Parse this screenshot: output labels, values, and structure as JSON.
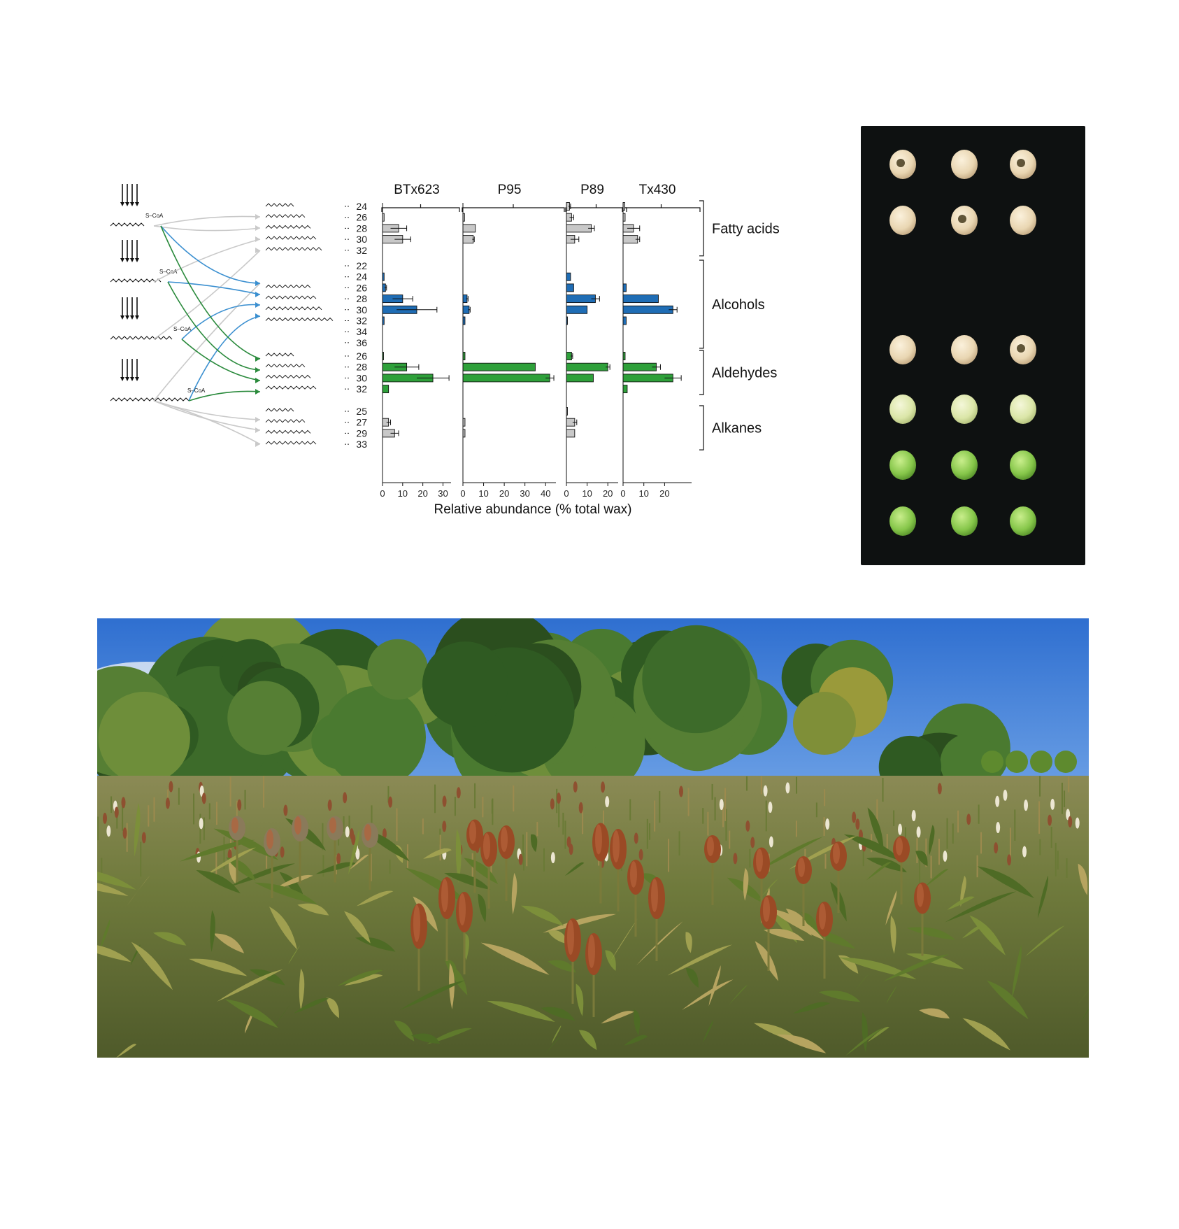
{
  "chart_data": {
    "type": "bar",
    "orientation": "horizontal",
    "xlabel": "Relative abundance (% total wax)",
    "panels": [
      {
        "label": "BTx623",
        "xticks": [
          0,
          10,
          20,
          30
        ],
        "xlim": [
          0,
          34
        ]
      },
      {
        "label": "P95",
        "xticks": [
          0,
          10,
          20,
          30,
          40
        ],
        "xlim": [
          0,
          45
        ]
      },
      {
        "label": "P89",
        "xticks": [
          0,
          10,
          20
        ],
        "xlim": [
          0,
          25
        ]
      },
      {
        "label": "Tx430",
        "xticks": [
          0,
          10,
          20
        ],
        "xlim": [
          0,
          33
        ]
      }
    ],
    "groups": [
      {
        "name": "Fatty acids",
        "color": "#c8c8c8",
        "categories": [
          "24",
          "26",
          "28",
          "30",
          "32"
        ],
        "values": [
          [
            0,
            0.8,
            8,
            10,
            0
          ],
          [
            0,
            0.8,
            6,
            5,
            0
          ],
          [
            1.5,
            2.5,
            12,
            4,
            0
          ],
          [
            0.8,
            1,
            5,
            7,
            0
          ]
        ],
        "errors": [
          [
            0,
            0,
            4,
            4,
            0
          ],
          [
            0,
            0,
            0,
            0.5,
            0
          ],
          [
            0.5,
            1,
            1.5,
            2,
            0
          ],
          [
            0,
            0,
            3,
            1,
            0
          ]
        ]
      },
      {
        "name": "Alcohols",
        "color": "#1f6db5",
        "categories": [
          "22",
          "24",
          "26",
          "28",
          "30",
          "32",
          "34",
          "36"
        ],
        "values": [
          [
            0,
            0.8,
            1.5,
            10,
            17,
            0.8,
            0,
            0
          ],
          [
            0,
            0,
            0,
            2,
            3,
            1,
            0,
            0
          ],
          [
            0,
            2,
            3.5,
            14,
            10,
            0.5,
            0,
            0
          ],
          [
            0,
            0,
            1.5,
            17,
            24,
            1.5,
            0,
            0
          ]
        ],
        "errors": [
          [
            0,
            0,
            0.5,
            5,
            10,
            0,
            0,
            0
          ],
          [
            0,
            0,
            0,
            0.5,
            0.5,
            0,
            0,
            0
          ],
          [
            0,
            0,
            0,
            2,
            0,
            0,
            0,
            0
          ],
          [
            0,
            0,
            0,
            0,
            2,
            0,
            0,
            0
          ]
        ]
      },
      {
        "name": "Aldehydes",
        "color": "#2ea03a",
        "categories": [
          "26",
          "28",
          "30",
          "32"
        ],
        "values": [
          [
            0.5,
            12,
            25,
            3
          ],
          [
            1,
            35,
            42,
            0
          ],
          [
            2.5,
            20,
            13,
            0
          ],
          [
            1,
            16,
            24,
            2
          ]
        ],
        "errors": [
          [
            0,
            6,
            8,
            0
          ],
          [
            0,
            0,
            2,
            0
          ],
          [
            0.5,
            1,
            0,
            0
          ],
          [
            0,
            2,
            4,
            0
          ]
        ]
      },
      {
        "name": "Alkanes",
        "color": "#c8c8c8",
        "categories": [
          "25",
          "27",
          "29",
          "33"
        ],
        "values": [
          [
            0,
            3,
            6,
            0
          ],
          [
            0,
            1,
            1,
            0
          ],
          [
            0.5,
            4,
            4,
            0
          ],
          [
            0,
            0,
            0,
            0
          ]
        ],
        "errors": [
          [
            0,
            1,
            2,
            0
          ],
          [
            0,
            0,
            0,
            0
          ],
          [
            0,
            1,
            0,
            0
          ],
          [
            0,
            0,
            0,
            0
          ]
        ]
      }
    ]
  }
}
